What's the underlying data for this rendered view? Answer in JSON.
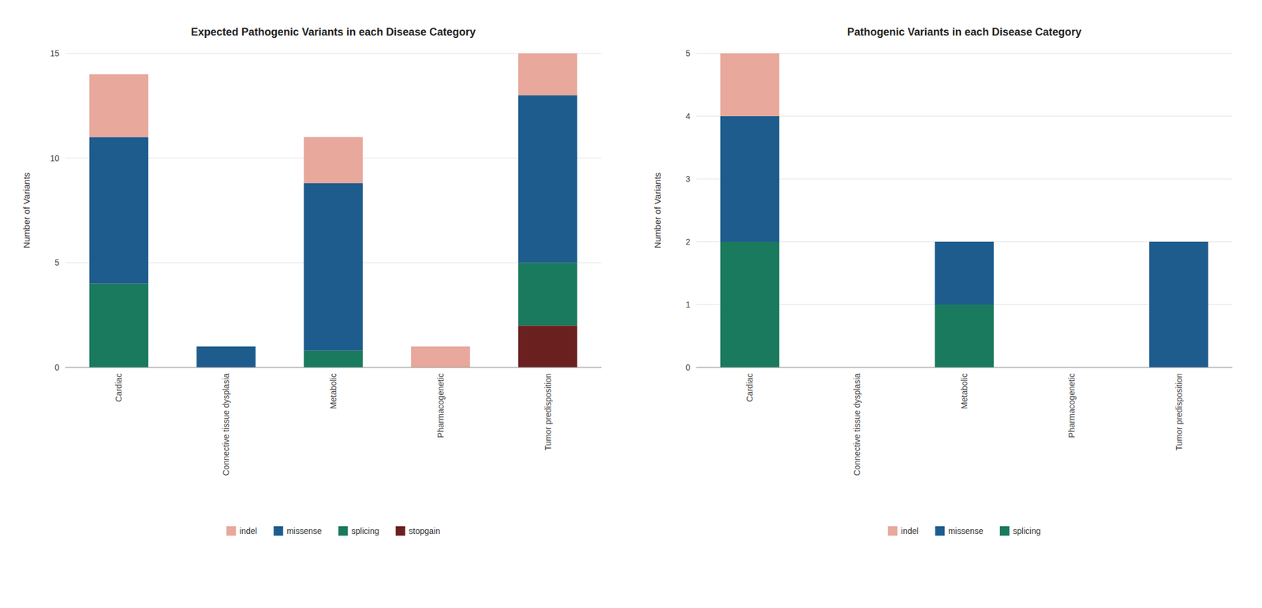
{
  "chart_data": [
    {
      "type": "bar",
      "stacked": true,
      "grid": true,
      "legend": "bottom",
      "title": "Expected Pathogenic Variants in each Disease Category",
      "ylabel": "Number of Variants",
      "categories": [
        "Cardiac",
        "Connective tissue dysplasia",
        "Metabolic",
        "Pharmacogenetic",
        "Tumor predisposition"
      ],
      "series": [
        {
          "name": "stopgain",
          "color": "#6b2020",
          "values": [
            0.0,
            0.0,
            0.0,
            0.0,
            2.0
          ]
        },
        {
          "name": "splicing",
          "color": "#1a7a5e",
          "values": [
            4.0,
            0.0,
            0.8,
            0.0,
            3.0
          ]
        },
        {
          "name": "missense",
          "color": "#1e5c8e",
          "values": [
            7.0,
            1.0,
            8.0,
            0.0,
            8.0
          ]
        },
        {
          "name": "indel",
          "color": "#e8a89c",
          "values": [
            3.0,
            0.0,
            2.2,
            1.0,
            2.0
          ]
        }
      ],
      "ylim": [
        0,
        15
      ],
      "yticks": [
        0,
        5,
        10,
        15
      ]
    },
    {
      "type": "bar",
      "stacked": true,
      "grid": true,
      "legend": "bottom",
      "title": "Pathogenic Variants in each Disease Category",
      "ylabel": "Number of Variants",
      "categories": [
        "Cardiac",
        "Connective tissue dysplasia",
        "Metabolic",
        "Pharmacogenetic",
        "Tumor predisposition"
      ],
      "series": [
        {
          "name": "splicing",
          "color": "#1a7a5e",
          "values": [
            2.0,
            0.0,
            1.0,
            0.0,
            0.0
          ]
        },
        {
          "name": "missense",
          "color": "#1e5c8e",
          "values": [
            2.0,
            0.0,
            1.0,
            0.0,
            2.0
          ]
        },
        {
          "name": "indel",
          "color": "#e8a89c",
          "values": [
            1.0,
            0.0,
            0.0,
            0.0,
            0.0
          ]
        }
      ],
      "ylim": [
        0,
        5
      ],
      "yticks": [
        0,
        1,
        2,
        3,
        4,
        5
      ]
    }
  ]
}
